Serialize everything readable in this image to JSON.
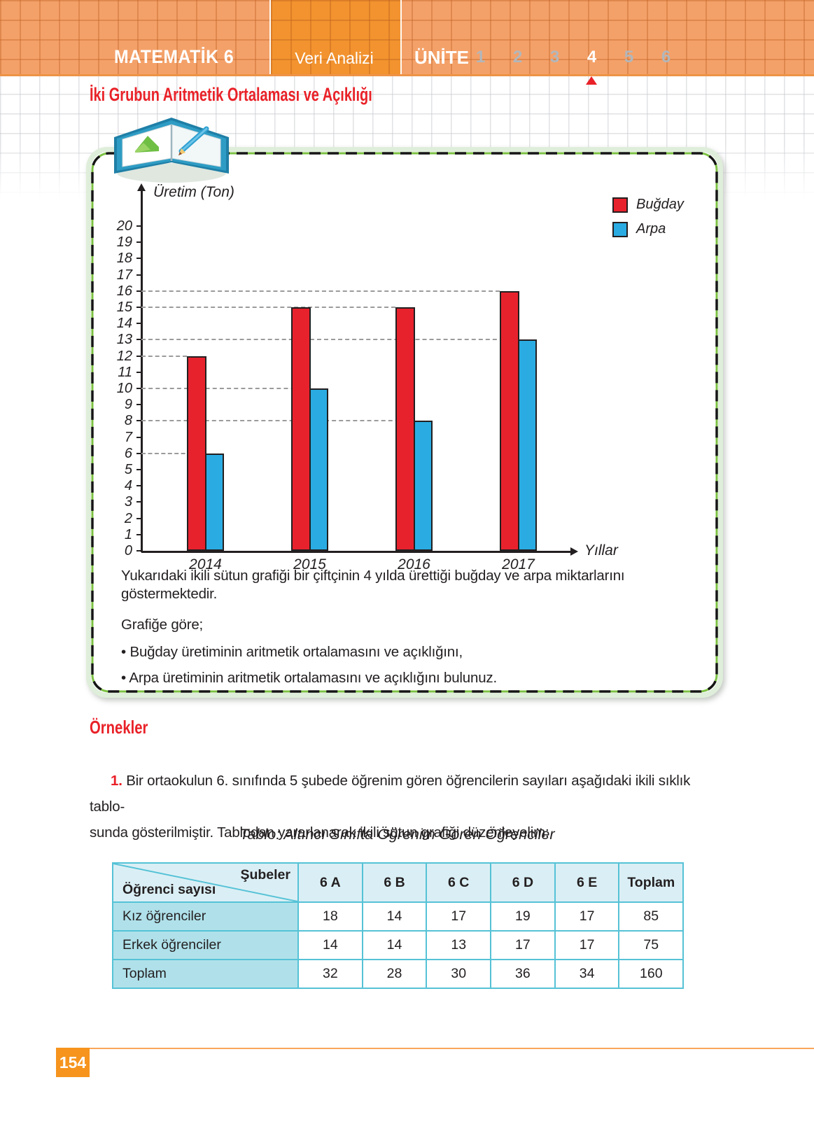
{
  "header": {
    "book_title": "MATEMATİK 6",
    "section": "Veri Analizi",
    "unit_label": "ÜNİTE",
    "unit_numbers": [
      "1",
      "2",
      "3",
      "4",
      "5",
      "6"
    ],
    "active_unit": "4",
    "page_title": "İki Grubun Aritmetik Ortalaması ve Açıklığı"
  },
  "colors": {
    "accent_red": "#e92128",
    "bar_red": "#e8222d",
    "bar_blue": "#2aace2",
    "band_orange": "#f4a169",
    "band_dark_orange": "#f2932f",
    "footer_orange": "#f6941d",
    "table_border_cyan": "#55c2d6",
    "table_header_bg": "#daeff5",
    "table_label_bg": "#b0e1ea",
    "box_green": "#7cc143"
  },
  "chart_data": {
    "type": "bar",
    "title": "",
    "ylabel": "Üretim (Ton)",
    "xlabel": "Yıllar",
    "categories": [
      "2014",
      "2015",
      "2016",
      "2017"
    ],
    "series": [
      {
        "name": "Buğday",
        "color": "#e8222d",
        "values": [
          12,
          15,
          15,
          16
        ]
      },
      {
        "name": "Arpa",
        "color": "#2aace2",
        "values": [
          6,
          10,
          8,
          13
        ]
      }
    ],
    "ylim": [
      0,
      20
    ],
    "ytick_step": 1,
    "gridlines": [
      6,
      8,
      10,
      12,
      13,
      15,
      16
    ],
    "grid_style": "dashed-to-bar",
    "legend_position": "top-right"
  },
  "activity": {
    "paragraph": "Yukarıdaki ikili sütun grafiği bir çiftçinin 4 yılda ürettiği buğday ve arpa miktarlarını göstermektedir.",
    "lead": "Grafiğe göre;",
    "bullet_char": "•",
    "bullets": [
      "Buğday üretiminin aritmetik ortalamasını ve açıklığını,",
      "Arpa üretiminin aritmetik ortalamasını ve açıklığını bulunuz."
    ]
  },
  "examples": {
    "heading": "Örnekler",
    "item_number": "1.",
    "item_line1": "Bir ortaokulun 6. sınıfında 5 şubede öğrenim gören öğrencilerin sayıları aşağıdaki ikili sıklık tablo-",
    "item_line2": "sunda gösterilmiştir. Tablodan yararlanarak ikili sütun grafiği düzenleyelim:"
  },
  "table": {
    "caption": "Tablo: Altıncı Sınıfta Öğrenim Gören Öğrenciler",
    "corner_top": "Şubeler",
    "corner_bottom": "Öğrenci sayısı",
    "columns": [
      "6 A",
      "6 B",
      "6 C",
      "6 D",
      "6 E",
      "Toplam"
    ],
    "rows": [
      {
        "label": "Kız öğrenciler",
        "values": [
          18,
          14,
          17,
          19,
          17,
          85
        ]
      },
      {
        "label": "Erkek öğrenciler",
        "values": [
          14,
          14,
          13,
          17,
          17,
          75
        ]
      },
      {
        "label": "Toplam",
        "values": [
          32,
          28,
          30,
          36,
          34,
          160
        ]
      }
    ]
  },
  "footer": {
    "page_number": "154"
  }
}
